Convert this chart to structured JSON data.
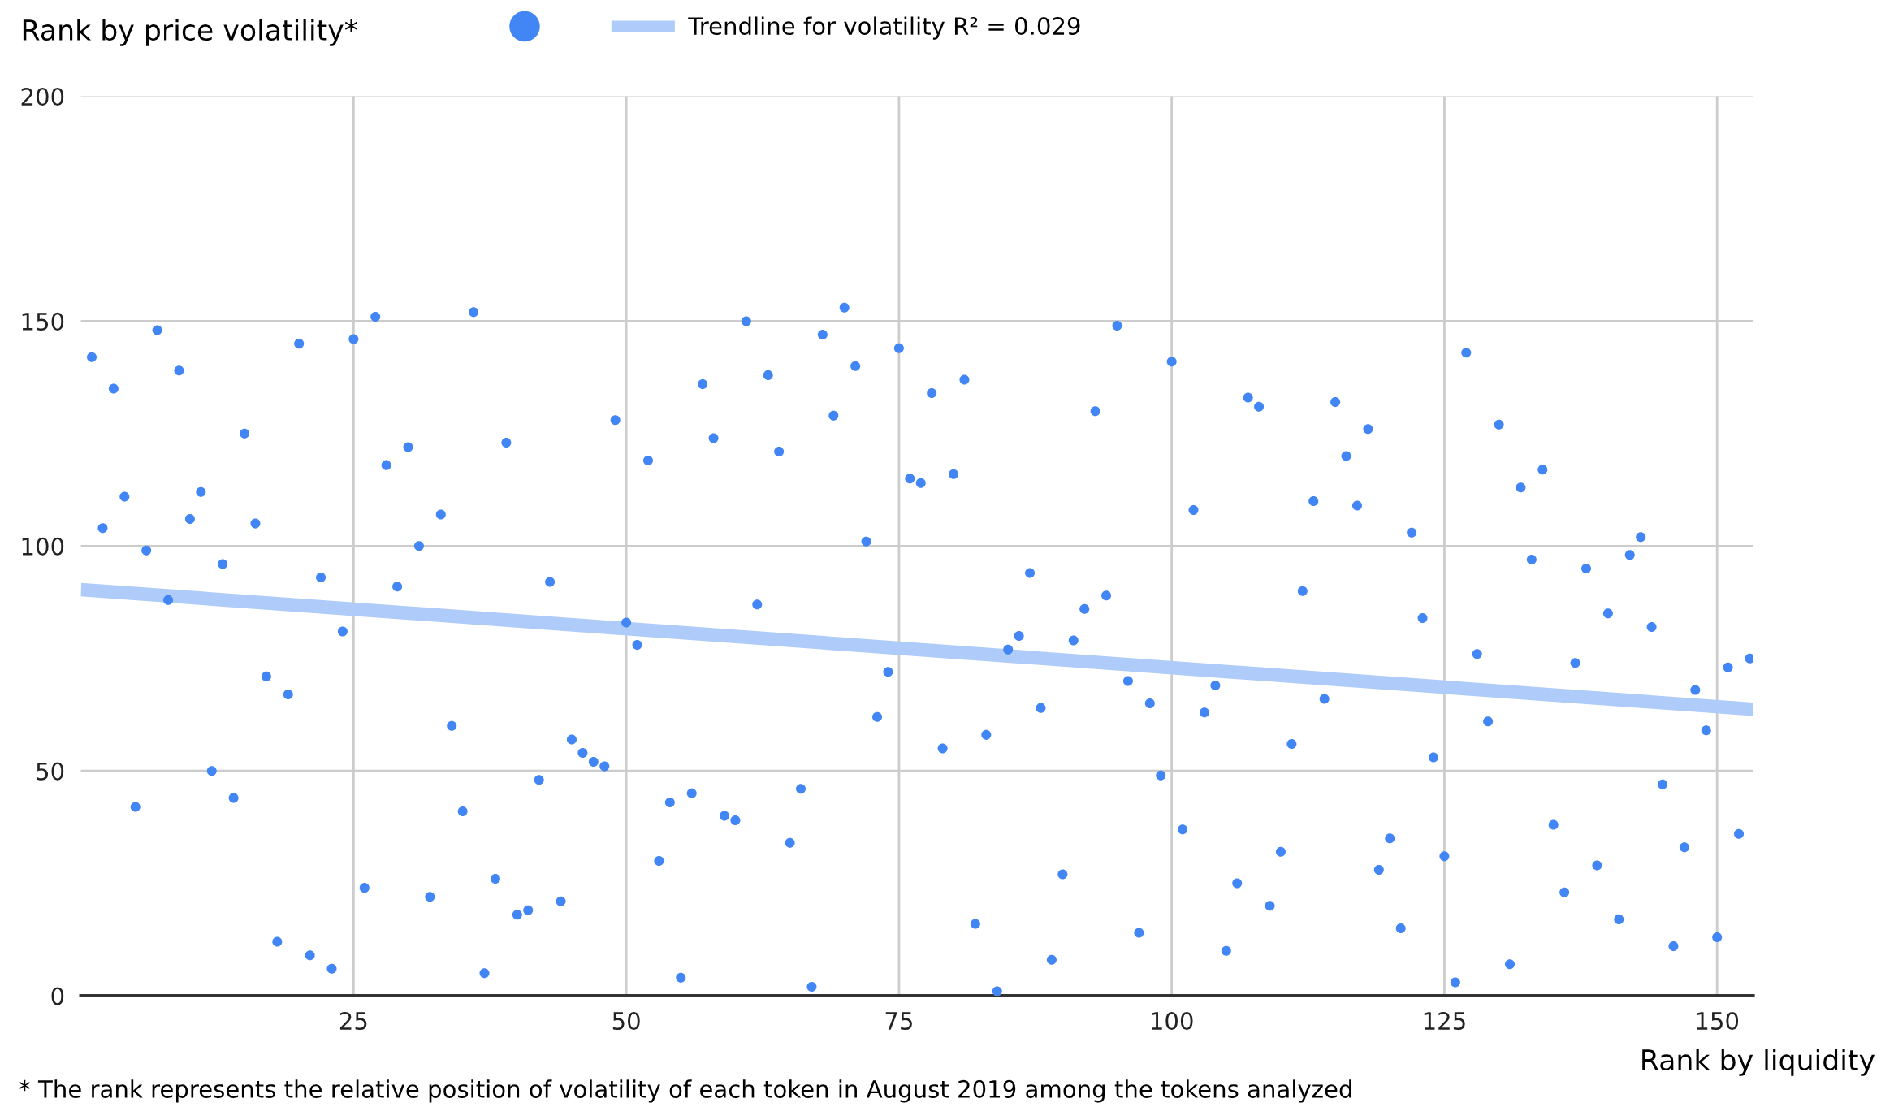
{
  "chart_data": {
    "type": "scatter",
    "ylabel": "Rank by price volatility*",
    "xlabel": "Rank by liquidity",
    "annotations": [
      "* The rank represents the relative position of volatility of each token in August 2019 among the tokens analyzed"
    ],
    "xlim": [
      0,
      153.3
    ],
    "xticks": [
      25,
      50,
      75,
      100,
      125,
      150
    ],
    "ylim": [
      0,
      200
    ],
    "yticks": [
      0,
      50,
      100,
      150,
      200
    ],
    "grid": true,
    "legend": "top",
    "series": [
      {
        "marker": "circle",
        "color": "#4285f4",
        "x": [
          1,
          2,
          3,
          4,
          5,
          6,
          7,
          8,
          9,
          10,
          11,
          12,
          13,
          14,
          15,
          16,
          17,
          18,
          19,
          20,
          21,
          22,
          23,
          24,
          25,
          26,
          27,
          28,
          29,
          30,
          31,
          32,
          33,
          34,
          35,
          36,
          37,
          38,
          39,
          40,
          41,
          42,
          43,
          44,
          45,
          46,
          47,
          48,
          49,
          50,
          51,
          52,
          53,
          54,
          55,
          56,
          57,
          58,
          59,
          60,
          61,
          62,
          63,
          64,
          65,
          66,
          67,
          68,
          69,
          70,
          71,
          72,
          73,
          74,
          75,
          76,
          77,
          78,
          79,
          80,
          81,
          82,
          83,
          84,
          85,
          86,
          87,
          88,
          89,
          90,
          91,
          92,
          93,
          94,
          95,
          96,
          97,
          98,
          99,
          100,
          101,
          102,
          103,
          104,
          105,
          106,
          107,
          108,
          109,
          110,
          111,
          112,
          113,
          114,
          115,
          116,
          117,
          118,
          119,
          120,
          121,
          122,
          123,
          124,
          125,
          126,
          127,
          128,
          129,
          130,
          131,
          132,
          133,
          134,
          135,
          136,
          137,
          138,
          139,
          140,
          141,
          142,
          143,
          144,
          145,
          146,
          147,
          148,
          149,
          150,
          151,
          152,
          153
        ],
        "values": [
          142,
          104,
          135,
          111,
          42,
          99,
          148,
          88,
          139,
          106,
          112,
          50,
          96,
          44,
          125,
          105,
          71,
          12,
          67,
          145,
          9,
          93,
          6,
          81,
          146,
          24,
          151,
          118,
          91,
          122,
          100,
          22,
          107,
          60,
          41,
          152,
          5,
          26,
          123,
          18,
          19,
          48,
          92,
          21,
          57,
          54,
          52,
          51,
          128,
          83,
          78,
          119,
          30,
          43,
          4,
          45,
          136,
          124,
          40,
          39,
          150,
          87,
          138,
          121,
          34,
          46,
          2,
          147,
          129,
          153,
          140,
          101,
          62,
          72,
          144,
          115,
          114,
          134,
          55,
          116,
          137,
          16,
          58,
          1,
          77,
          80,
          94,
          64,
          8,
          27,
          79,
          86,
          130,
          89,
          149,
          70,
          14,
          65,
          49,
          141,
          37,
          108,
          63,
          69,
          10,
          25,
          133,
          131,
          20,
          32,
          56,
          90,
          110,
          66,
          132,
          120,
          109,
          126,
          28,
          35,
          15,
          103,
          84,
          53,
          31,
          3,
          143,
          76,
          61,
          127,
          7,
          113,
          97,
          117,
          38,
          23,
          74,
          95,
          29,
          85,
          17,
          98,
          102,
          82,
          47,
          11,
          33,
          68,
          59,
          13,
          73,
          36,
          75
        ]
      },
      {
        "type": "line",
        "name": "Trendline for volatility R² = 0.029",
        "color": "#aecbfa",
        "x": [
          0,
          153.3
        ],
        "values": [
          90.3,
          63.7
        ]
      }
    ]
  }
}
